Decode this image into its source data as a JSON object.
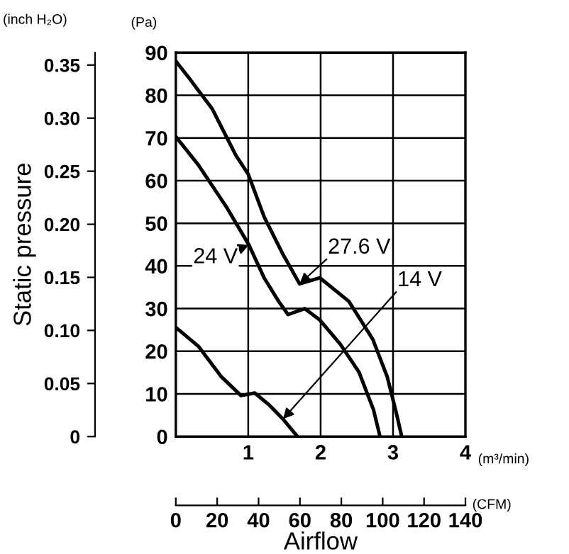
{
  "chart_data": {
    "type": "line",
    "xlabel": "Airflow",
    "ylabel": "(Pa)",
    "y2label": "Static pressure",
    "x2label": "(CFM)",
    "annotations": [
      "(inch H₂O)",
      "(m³/min)"
    ],
    "xlim": [
      0,
      4
    ],
    "xticks": [
      {
        "value": 0,
        "label": null
      },
      1,
      2,
      3,
      4
    ],
    "ylim": [
      0,
      90
    ],
    "yticks": [
      0,
      10,
      20,
      30,
      40,
      50,
      60,
      70,
      80,
      90
    ],
    "y2lim": [
      0,
      0.3617
    ],
    "y2ticks": [
      0,
      0.05,
      {
        "value": 0.1,
        "label": "0.10"
      },
      0.15,
      {
        "value": 0.2,
        "label": "0.20"
      },
      0.25,
      {
        "value": 0.3,
        "label": "0.30"
      },
      0.35
    ],
    "x2lim": [
      0,
      140
    ],
    "x2ticks": [
      0,
      20,
      40,
      60,
      80,
      100,
      120,
      140
    ],
    "grid": true,
    "marker": "none",
    "line_style": "solid",
    "series": [
      {
        "name": "27.6 V",
        "color": "#000000",
        "x": [
          0,
          0.18,
          0.5,
          0.83,
          1.0,
          1.22,
          1.48,
          1.71,
          1.99,
          2.39,
          2.72,
          2.92,
          3.05,
          3.12
        ],
        "values": [
          88.0,
          84.1,
          76.9,
          65.9,
          61.5,
          51.5,
          42.7,
          35.8,
          37.2,
          31.7,
          22.8,
          14.0,
          5.2,
          0
        ]
      },
      {
        "name": "24 V",
        "color": "#000000",
        "x": [
          0,
          0.31,
          0.7,
          1.01,
          1.22,
          1.42,
          1.55,
          1.78,
          1.99,
          2.27,
          2.53,
          2.73,
          2.82
        ],
        "values": [
          70.3,
          63.7,
          53.8,
          44.9,
          37.2,
          31.7,
          28.6,
          30.0,
          27.3,
          21.7,
          15.1,
          6.3,
          0
        ]
      },
      {
        "name": "14 V",
        "color": "#000000",
        "x": [
          0,
          0.31,
          0.63,
          0.9,
          1.09,
          1.29,
          1.48,
          1.68
        ],
        "values": [
          25.6,
          21.2,
          14.0,
          9.6,
          10.2,
          7.4,
          4.1,
          0
        ]
      }
    ]
  }
}
